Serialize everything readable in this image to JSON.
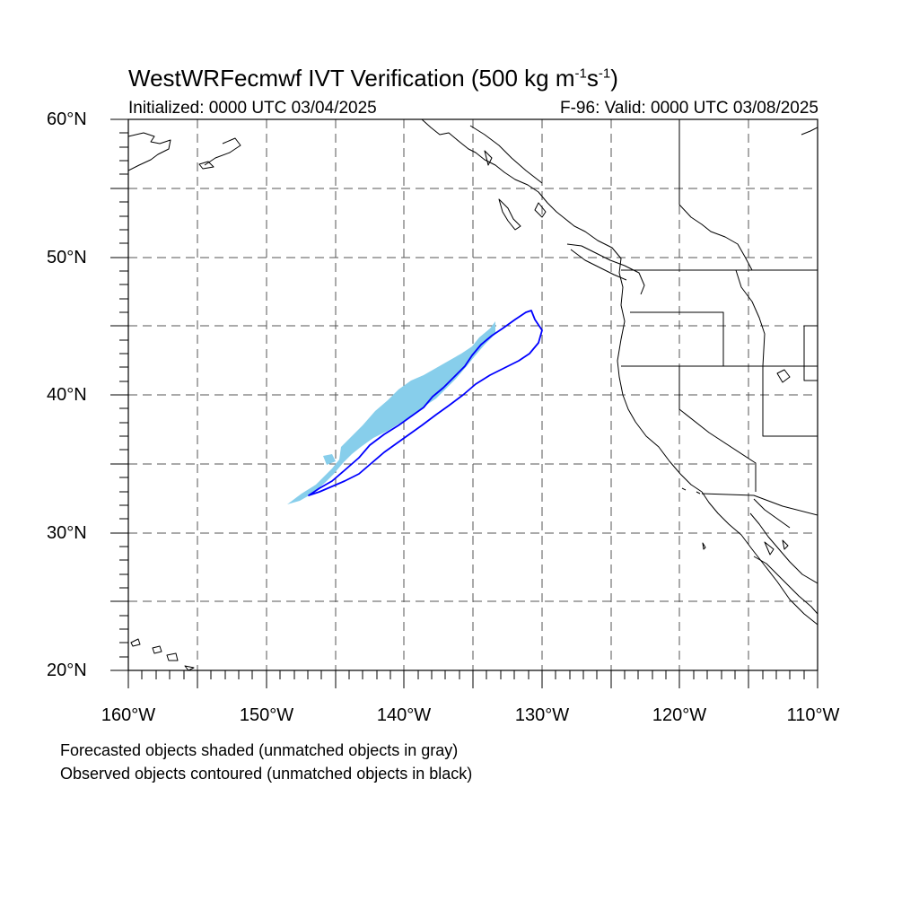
{
  "title": {
    "main": "WestWRFecmwf IVT Verification (500 kg m",
    "sup1": "-1",
    "mid": "s",
    "sup2": "-1",
    "end": ")"
  },
  "subtitle": {
    "initialized": "Initialized: 0000 UTC 03/04/2025",
    "valid": "F-96: Valid: 0000 UTC 03/08/2025"
  },
  "map": {
    "lon_range": [
      -160,
      -110
    ],
    "lat_range": [
      20,
      60
    ],
    "lat_labels": [
      "20°N",
      "30°N",
      "40°N",
      "50°N",
      "60°N"
    ],
    "lon_labels": [
      "160°W",
      "150°W",
      "140°W",
      "130°W",
      "120°W",
      "110°W"
    ],
    "grid": "dashed every 5 degrees",
    "forecast_color": "#87CEEB",
    "observed_color": "#0000FF"
  },
  "notes": {
    "line1": "Forecasted objects shaded (unmatched objects in gray)",
    "line2": "Observed objects contoured (unmatched objects in black)"
  }
}
